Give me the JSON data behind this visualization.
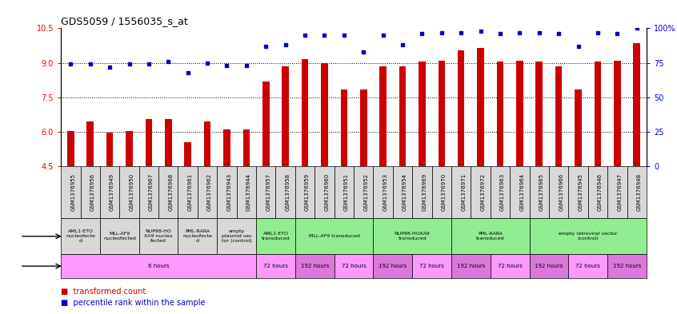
{
  "title": "GDS5059 / 1556035_s_at",
  "samples": [
    "GSM1376955",
    "GSM1376956",
    "GSM1376949",
    "GSM1376950",
    "GSM1376967",
    "GSM1376968",
    "GSM1376961",
    "GSM1376962",
    "GSM1376943",
    "GSM1376944",
    "GSM1376957",
    "GSM1376958",
    "GSM1376959",
    "GSM1376960",
    "GSM1376951",
    "GSM1376952",
    "GSM1376953",
    "GSM1376954",
    "GSM1376969",
    "GSM1376970",
    "GSM1376971",
    "GSM1376972",
    "GSM1376963",
    "GSM1376964",
    "GSM1376965",
    "GSM1376966",
    "GSM1376945",
    "GSM1376946",
    "GSM1376947",
    "GSM1376948"
  ],
  "bar_values": [
    6.05,
    6.45,
    5.98,
    6.05,
    6.55,
    6.55,
    5.55,
    6.45,
    6.1,
    6.1,
    8.2,
    8.85,
    9.15,
    9.0,
    7.85,
    7.85,
    8.85,
    8.85,
    9.05,
    9.1,
    9.55,
    9.65,
    9.05,
    9.1,
    9.05,
    8.85,
    7.85,
    9.05,
    9.1,
    9.85
  ],
  "dot_values": [
    74,
    74,
    72,
    74,
    74,
    76,
    68,
    75,
    73,
    73,
    87,
    88,
    95,
    95,
    95,
    83,
    95,
    88,
    96,
    97,
    97,
    98,
    96,
    97,
    97,
    96,
    87,
    97,
    96,
    100
  ],
  "bar_color": "#cc0000",
  "dot_color": "#0000cc",
  "ylim_left": [
    4.5,
    10.5
  ],
  "ylim_right": [
    0,
    100
  ],
  "yticks_left": [
    4.5,
    6.0,
    7.5,
    9.0,
    10.5
  ],
  "yticks_right": [
    0,
    25,
    50,
    75,
    100
  ],
  "ytick_labels_right": [
    "0",
    "25",
    "50",
    "75",
    "100%"
  ],
  "hlines": [
    6.0,
    7.5,
    9.0
  ],
  "protocol_rows": [
    {
      "label": "AML1-ETO\nnucleofecte\nd",
      "start": 0,
      "end": 2,
      "color": "#d8d8d8"
    },
    {
      "label": "MLL-AF9\nnucleofected",
      "start": 2,
      "end": 4,
      "color": "#d8d8d8"
    },
    {
      "label": "NUP98-HO\nXA9 nucleo\nfected",
      "start": 4,
      "end": 6,
      "color": "#d8d8d8"
    },
    {
      "label": "PML-RARA\nnucleofecte\nd",
      "start": 6,
      "end": 8,
      "color": "#d8d8d8"
    },
    {
      "label": "empty\nplasmid vec\ntor (control)",
      "start": 8,
      "end": 10,
      "color": "#d8d8d8"
    },
    {
      "label": "AML1-ETO\ntransduced",
      "start": 10,
      "end": 12,
      "color": "#90ee90"
    },
    {
      "label": "MLL-AF9 transduced",
      "start": 12,
      "end": 16,
      "color": "#90ee90"
    },
    {
      "label": "NUP98-HOXA9\ntransduced",
      "start": 16,
      "end": 20,
      "color": "#90ee90"
    },
    {
      "label": "PML-RARA\ntransduced",
      "start": 20,
      "end": 24,
      "color": "#90ee90"
    },
    {
      "label": "empty retroviral vector\n(control)",
      "start": 24,
      "end": 30,
      "color": "#90ee90"
    }
  ],
  "time_rows": [
    {
      "label": "6 hours",
      "start": 0,
      "end": 10,
      "color": "#ff99ff"
    },
    {
      "label": "72 hours",
      "start": 10,
      "end": 12,
      "color": "#ff99ff"
    },
    {
      "label": "192 hours",
      "start": 12,
      "end": 14,
      "color": "#dd77dd"
    },
    {
      "label": "72 hours",
      "start": 14,
      "end": 16,
      "color": "#ff99ff"
    },
    {
      "label": "192 hours",
      "start": 16,
      "end": 18,
      "color": "#dd77dd"
    },
    {
      "label": "72 hours",
      "start": 18,
      "end": 20,
      "color": "#ff99ff"
    },
    {
      "label": "192 hours",
      "start": 20,
      "end": 22,
      "color": "#dd77dd"
    },
    {
      "label": "72 hours",
      "start": 22,
      "end": 24,
      "color": "#ff99ff"
    },
    {
      "label": "192 hours",
      "start": 24,
      "end": 26,
      "color": "#dd77dd"
    },
    {
      "label": "72 hours",
      "start": 26,
      "end": 28,
      "color": "#ff99ff"
    },
    {
      "label": "192 hours",
      "start": 28,
      "end": 30,
      "color": "#dd77dd"
    }
  ],
  "sample_col_color": "#d8d8d8",
  "left_label_color": "#888888",
  "legend_square_size": 7,
  "bar_width": 0.35
}
